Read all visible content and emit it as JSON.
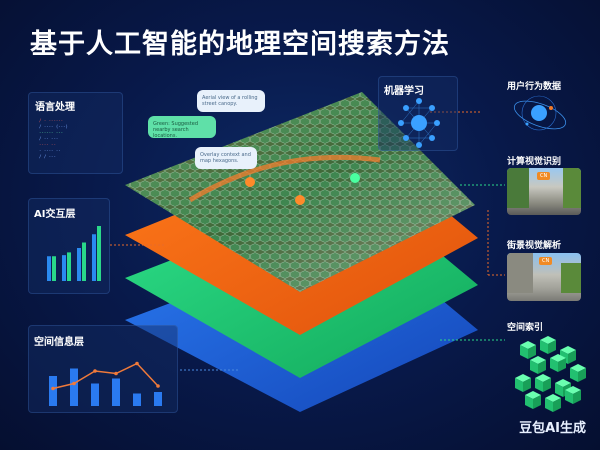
{
  "title": "基于人工智能的地理空间搜索方法",
  "panels": {
    "nlp": "语言处理",
    "ai_layer": "AI交互层",
    "spatial_info": "空间信息层",
    "ml": "机器学习",
    "user_behavior": "用户行为数据",
    "cv": "计算视觉识别",
    "street": "街景视觉解析",
    "index": "空间索引"
  },
  "bubbles": [
    "Aerial view of a rolling street canopy.",
    "Green: Suggested nearby search locations.",
    "Overlay context and map hexagons."
  ],
  "colors": {
    "orange": "#f06a1a",
    "green": "#1fc46a",
    "blue": "#1a5fd8",
    "accent": "#3aa0ff"
  },
  "ai_bars": [
    [
      0.45,
      0.45
    ],
    [
      0.47,
      0.52
    ],
    [
      0.6,
      0.7
    ],
    [
      0.85,
      1.0
    ]
  ],
  "spatial_bars": [
    0.6,
    0.75,
    0.45,
    0.55,
    0.25,
    0.28
  ],
  "spatial_line": [
    0.35,
    0.45,
    0.7,
    0.65,
    0.85,
    0.4
  ],
  "watermark": "豆包AI生成"
}
